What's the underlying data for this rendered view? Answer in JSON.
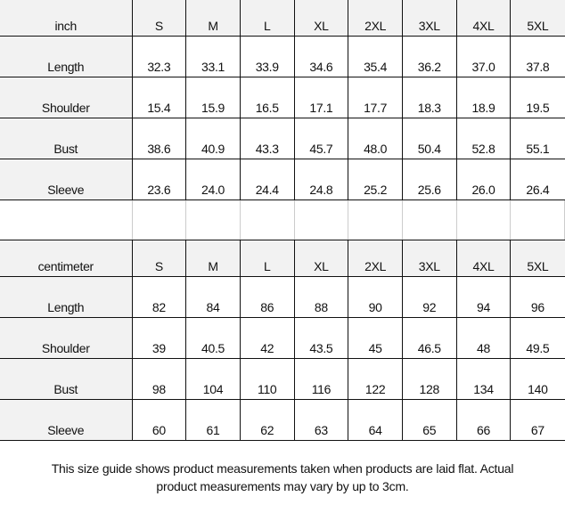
{
  "sizes": [
    "S",
    "M",
    "L",
    "XL",
    "2XL",
    "3XL",
    "4XL",
    "5XL"
  ],
  "tables": [
    {
      "unit": "inch",
      "rows": [
        {
          "label": "Length",
          "values": [
            "32.3",
            "33.1",
            "33.9",
            "34.6",
            "35.4",
            "36.2",
            "37.0",
            "37.8"
          ]
        },
        {
          "label": "Shoulder",
          "values": [
            "15.4",
            "15.9",
            "16.5",
            "17.1",
            "17.7",
            "18.3",
            "18.9",
            "19.5"
          ]
        },
        {
          "label": "Bust",
          "values": [
            "38.6",
            "40.9",
            "43.3",
            "45.7",
            "48.0",
            "50.4",
            "52.8",
            "55.1"
          ]
        },
        {
          "label": "Sleeve",
          "values": [
            "23.6",
            "24.0",
            "24.4",
            "24.8",
            "25.2",
            "25.6",
            "26.0",
            "26.4"
          ]
        }
      ]
    },
    {
      "unit": "centimeter",
      "rows": [
        {
          "label": "Length",
          "values": [
            "82",
            "84",
            "86",
            "88",
            "90",
            "92",
            "94",
            "96"
          ]
        },
        {
          "label": "Shoulder",
          "values": [
            "39",
            "40.5",
            "42",
            "43.5",
            "45",
            "46.5",
            "48",
            "49.5"
          ]
        },
        {
          "label": "Bust",
          "values": [
            "98",
            "104",
            "110",
            "116",
            "122",
            "128",
            "134",
            "140"
          ]
        },
        {
          "label": "Sleeve",
          "values": [
            "60",
            "61",
            "62",
            "63",
            "64",
            "65",
            "66",
            "67"
          ]
        }
      ]
    }
  ],
  "note": {
    "line1": "This size guide shows product measurements taken when products are laid flat. Actual",
    "line2": "product measurements may vary by up to 3cm."
  }
}
